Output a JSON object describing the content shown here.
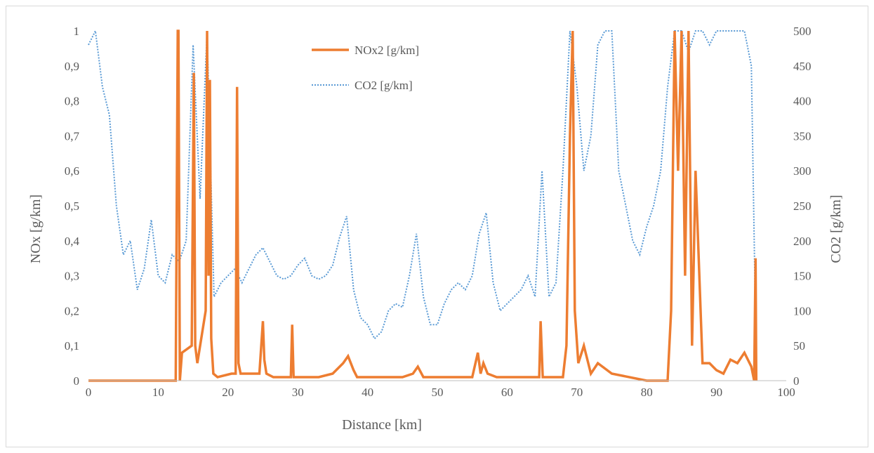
{
  "chart_data": {
    "type": "line",
    "title": "",
    "xlabel": "Distance [km]",
    "ylabel_left": "NOx [g/km]",
    "ylabel_right": "CO2 [g/km]",
    "xlim": [
      0,
      100
    ],
    "ylim_left": [
      0,
      1
    ],
    "ylim_right": [
      0,
      500
    ],
    "x_ticks": [
      "0",
      "10",
      "20",
      "30",
      "40",
      "50",
      "60",
      "70",
      "80",
      "90",
      "100"
    ],
    "y_left_ticks": [
      "0",
      "0,1",
      "0,2",
      "0,3",
      "0,4",
      "0,5",
      "0,6",
      "0,7",
      "0,8",
      "0,9",
      "1"
    ],
    "y_right_ticks": [
      "0",
      "50",
      "100",
      "150",
      "200",
      "250",
      "300",
      "350",
      "400",
      "450",
      "500"
    ],
    "grid": false,
    "legend_position": "top-center",
    "colors": {
      "nox": "#ed7d31",
      "co2": "#5b9bd5",
      "axis": "#bfbfbf",
      "text": "#595959"
    },
    "series": [
      {
        "name": "NOx2 [g/km]",
        "axis": "left",
        "style": "solid",
        "x": [
          0,
          12.5,
          12.8,
          12.9,
          13.1,
          13.4,
          14.8,
          15.1,
          15.3,
          15.6,
          16.8,
          17.0,
          17.2,
          17.4,
          17.6,
          17.9,
          18.5,
          20.5,
          21.1,
          21.3,
          21.5,
          21.8,
          24.5,
          25.0,
          25.2,
          25.5,
          26.5,
          29.0,
          29.2,
          29.4,
          33,
          35,
          36.5,
          37.2,
          38.0,
          38.5,
          40,
          45,
          46.5,
          47.2,
          48,
          50,
          55,
          55.8,
          56.2,
          56.6,
          57.2,
          58.5,
          63,
          64.6,
          64.8,
          65.1,
          66,
          68,
          68.5,
          69,
          69.4,
          69.7,
          70.2,
          71,
          72,
          73,
          75,
          80,
          83,
          83.5,
          84,
          84.5,
          85,
          85.5,
          86,
          86.5,
          87,
          88,
          89,
          90,
          91,
          92,
          93,
          94,
          95,
          95.4,
          95.6,
          95.7
        ],
        "y": [
          0,
          0,
          1.0,
          1.0,
          0,
          0.08,
          0.1,
          0.88,
          0.1,
          0.05,
          0.2,
          1.0,
          0.3,
          0.86,
          0.12,
          0.02,
          0.01,
          0.02,
          0.02,
          0.84,
          0.05,
          0.02,
          0.02,
          0.17,
          0.06,
          0.02,
          0.01,
          0.01,
          0.16,
          0.01,
          0.01,
          0.02,
          0.05,
          0.07,
          0.03,
          0.01,
          0.01,
          0.01,
          0.02,
          0.04,
          0.01,
          0.01,
          0.01,
          0.08,
          0.02,
          0.05,
          0.02,
          0.01,
          0.01,
          0.01,
          0.17,
          0.01,
          0.01,
          0.01,
          0.1,
          0.7,
          1.0,
          0.2,
          0.05,
          0.1,
          0.02,
          0.05,
          0.02,
          0,
          0,
          0.2,
          1.0,
          0.6,
          1.0,
          0.3,
          1.0,
          0.1,
          0.6,
          0.05,
          0.05,
          0.03,
          0.02,
          0.06,
          0.05,
          0.08,
          0.04,
          0.0,
          0.35,
          0.0
        ]
      },
      {
        "name": "CO2 [g/km]",
        "axis": "right",
        "style": "dotted",
        "x": [
          0,
          1,
          2,
          3,
          4,
          5,
          6,
          7,
          8,
          9,
          10,
          11,
          12,
          13,
          14,
          15,
          16,
          17,
          18,
          19,
          20,
          21,
          22,
          23,
          24,
          25,
          26,
          27,
          28,
          29,
          30,
          31,
          32,
          33,
          34,
          35,
          36,
          37,
          38,
          39,
          40,
          41,
          42,
          43,
          44,
          45,
          46,
          47,
          48,
          49,
          50,
          51,
          52,
          53,
          54,
          55,
          56,
          57,
          58,
          59,
          60,
          61,
          62,
          63,
          64,
          65,
          66,
          67,
          68,
          69,
          70,
          71,
          72,
          73,
          74,
          75,
          76,
          77,
          78,
          79,
          80,
          81,
          82,
          83,
          84,
          85,
          86,
          87,
          88,
          89,
          90,
          91,
          92,
          93,
          94,
          95,
          95.6
        ],
        "y": [
          480,
          500,
          420,
          380,
          250,
          180,
          200,
          130,
          160,
          230,
          150,
          140,
          180,
          170,
          200,
          480,
          260,
          500,
          120,
          140,
          150,
          160,
          140,
          160,
          180,
          190,
          170,
          150,
          145,
          150,
          165,
          175,
          150,
          145,
          150,
          165,
          205,
          235,
          130,
          90,
          80,
          60,
          70,
          100,
          110,
          105,
          150,
          210,
          120,
          80,
          80,
          110,
          130,
          140,
          130,
          150,
          210,
          240,
          140,
          100,
          110,
          120,
          130,
          150,
          120,
          300,
          120,
          140,
          300,
          500,
          420,
          300,
          350,
          480,
          500,
          500,
          300,
          250,
          200,
          180,
          220,
          250,
          300,
          420,
          500,
          500,
          470,
          500,
          500,
          480,
          500,
          500,
          500,
          500,
          500,
          450,
          80
        ]
      }
    ]
  }
}
